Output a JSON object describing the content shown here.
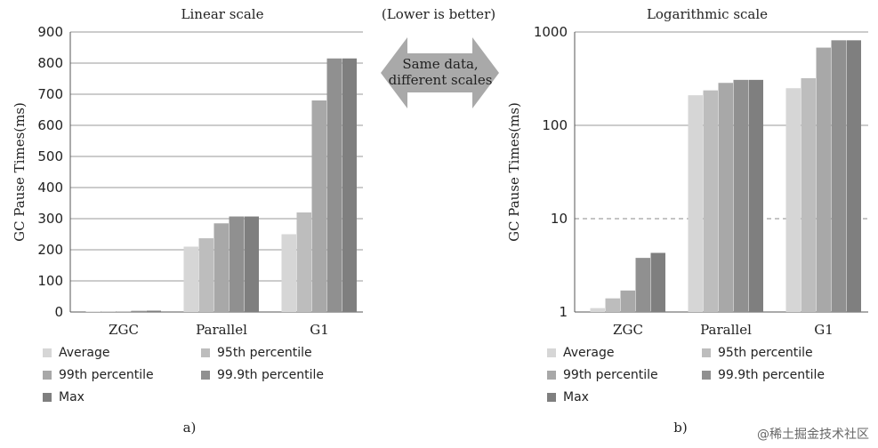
{
  "note": "(Lower is better)",
  "arrow_text": [
    "Same data,",
    "different scales"
  ],
  "watermark": "@稀土掘金技术社区",
  "colors": {
    "Average": "#d6d6d6",
    "95th percentile": "#bdbdbd",
    "99th percentile": "#a8a8a8",
    "99.9th percentile": "#909090",
    "Max": "#7f7f7f",
    "arrow": "#a9a9a9"
  },
  "chart_data": [
    {
      "type": "bar",
      "title": "Linear scale",
      "panel_label": "a)",
      "ylabel": "GC Pause Times(ms)",
      "yscale": "linear",
      "ylim": [
        0,
        900
      ],
      "yticks": [
        0,
        100,
        200,
        300,
        400,
        500,
        600,
        700,
        800,
        900
      ],
      "ytick_labels": [
        "0",
        "100",
        "200",
        "300",
        "400",
        "500",
        "600",
        "700",
        "800",
        "900"
      ],
      "grid": true,
      "categories": [
        "ZGC",
        "Parallel",
        "G1"
      ],
      "series": [
        {
          "name": "Average",
          "values": [
            1.1,
            210,
            250
          ]
        },
        {
          "name": "95th percentile",
          "values": [
            1.4,
            237,
            320
          ]
        },
        {
          "name": "99th percentile",
          "values": [
            1.7,
            285,
            680
          ]
        },
        {
          "name": "99.9th percentile",
          "values": [
            3.8,
            307,
            815
          ]
        },
        {
          "name": "Max",
          "values": [
            4.3,
            307,
            815
          ]
        }
      ],
      "legend": [
        "Average",
        "95th percentile",
        "99th percentile",
        "99.9th percentile",
        "Max"
      ]
    },
    {
      "type": "bar",
      "title": "Logarithmic scale",
      "panel_label": "b)",
      "ylabel": "GC Pause Times(ms)",
      "yscale": "log",
      "ylim": [
        1,
        1000
      ],
      "yticks": [
        1,
        10,
        100,
        1000
      ],
      "ytick_labels": [
        "1",
        "10",
        "100",
        "1000"
      ],
      "grid": true,
      "categories": [
        "ZGC",
        "Parallel",
        "G1"
      ],
      "series": [
        {
          "name": "Average",
          "values": [
            1.1,
            210,
            250
          ]
        },
        {
          "name": "95th percentile",
          "values": [
            1.4,
            237,
            320
          ]
        },
        {
          "name": "99th percentile",
          "values": [
            1.7,
            285,
            680
          ]
        },
        {
          "name": "99.9th percentile",
          "values": [
            3.8,
            307,
            815
          ]
        },
        {
          "name": "Max",
          "values": [
            4.3,
            307,
            815
          ]
        }
      ],
      "legend": [
        "Average",
        "95th percentile",
        "99th percentile",
        "99.9th percentile",
        "Max"
      ]
    }
  ]
}
